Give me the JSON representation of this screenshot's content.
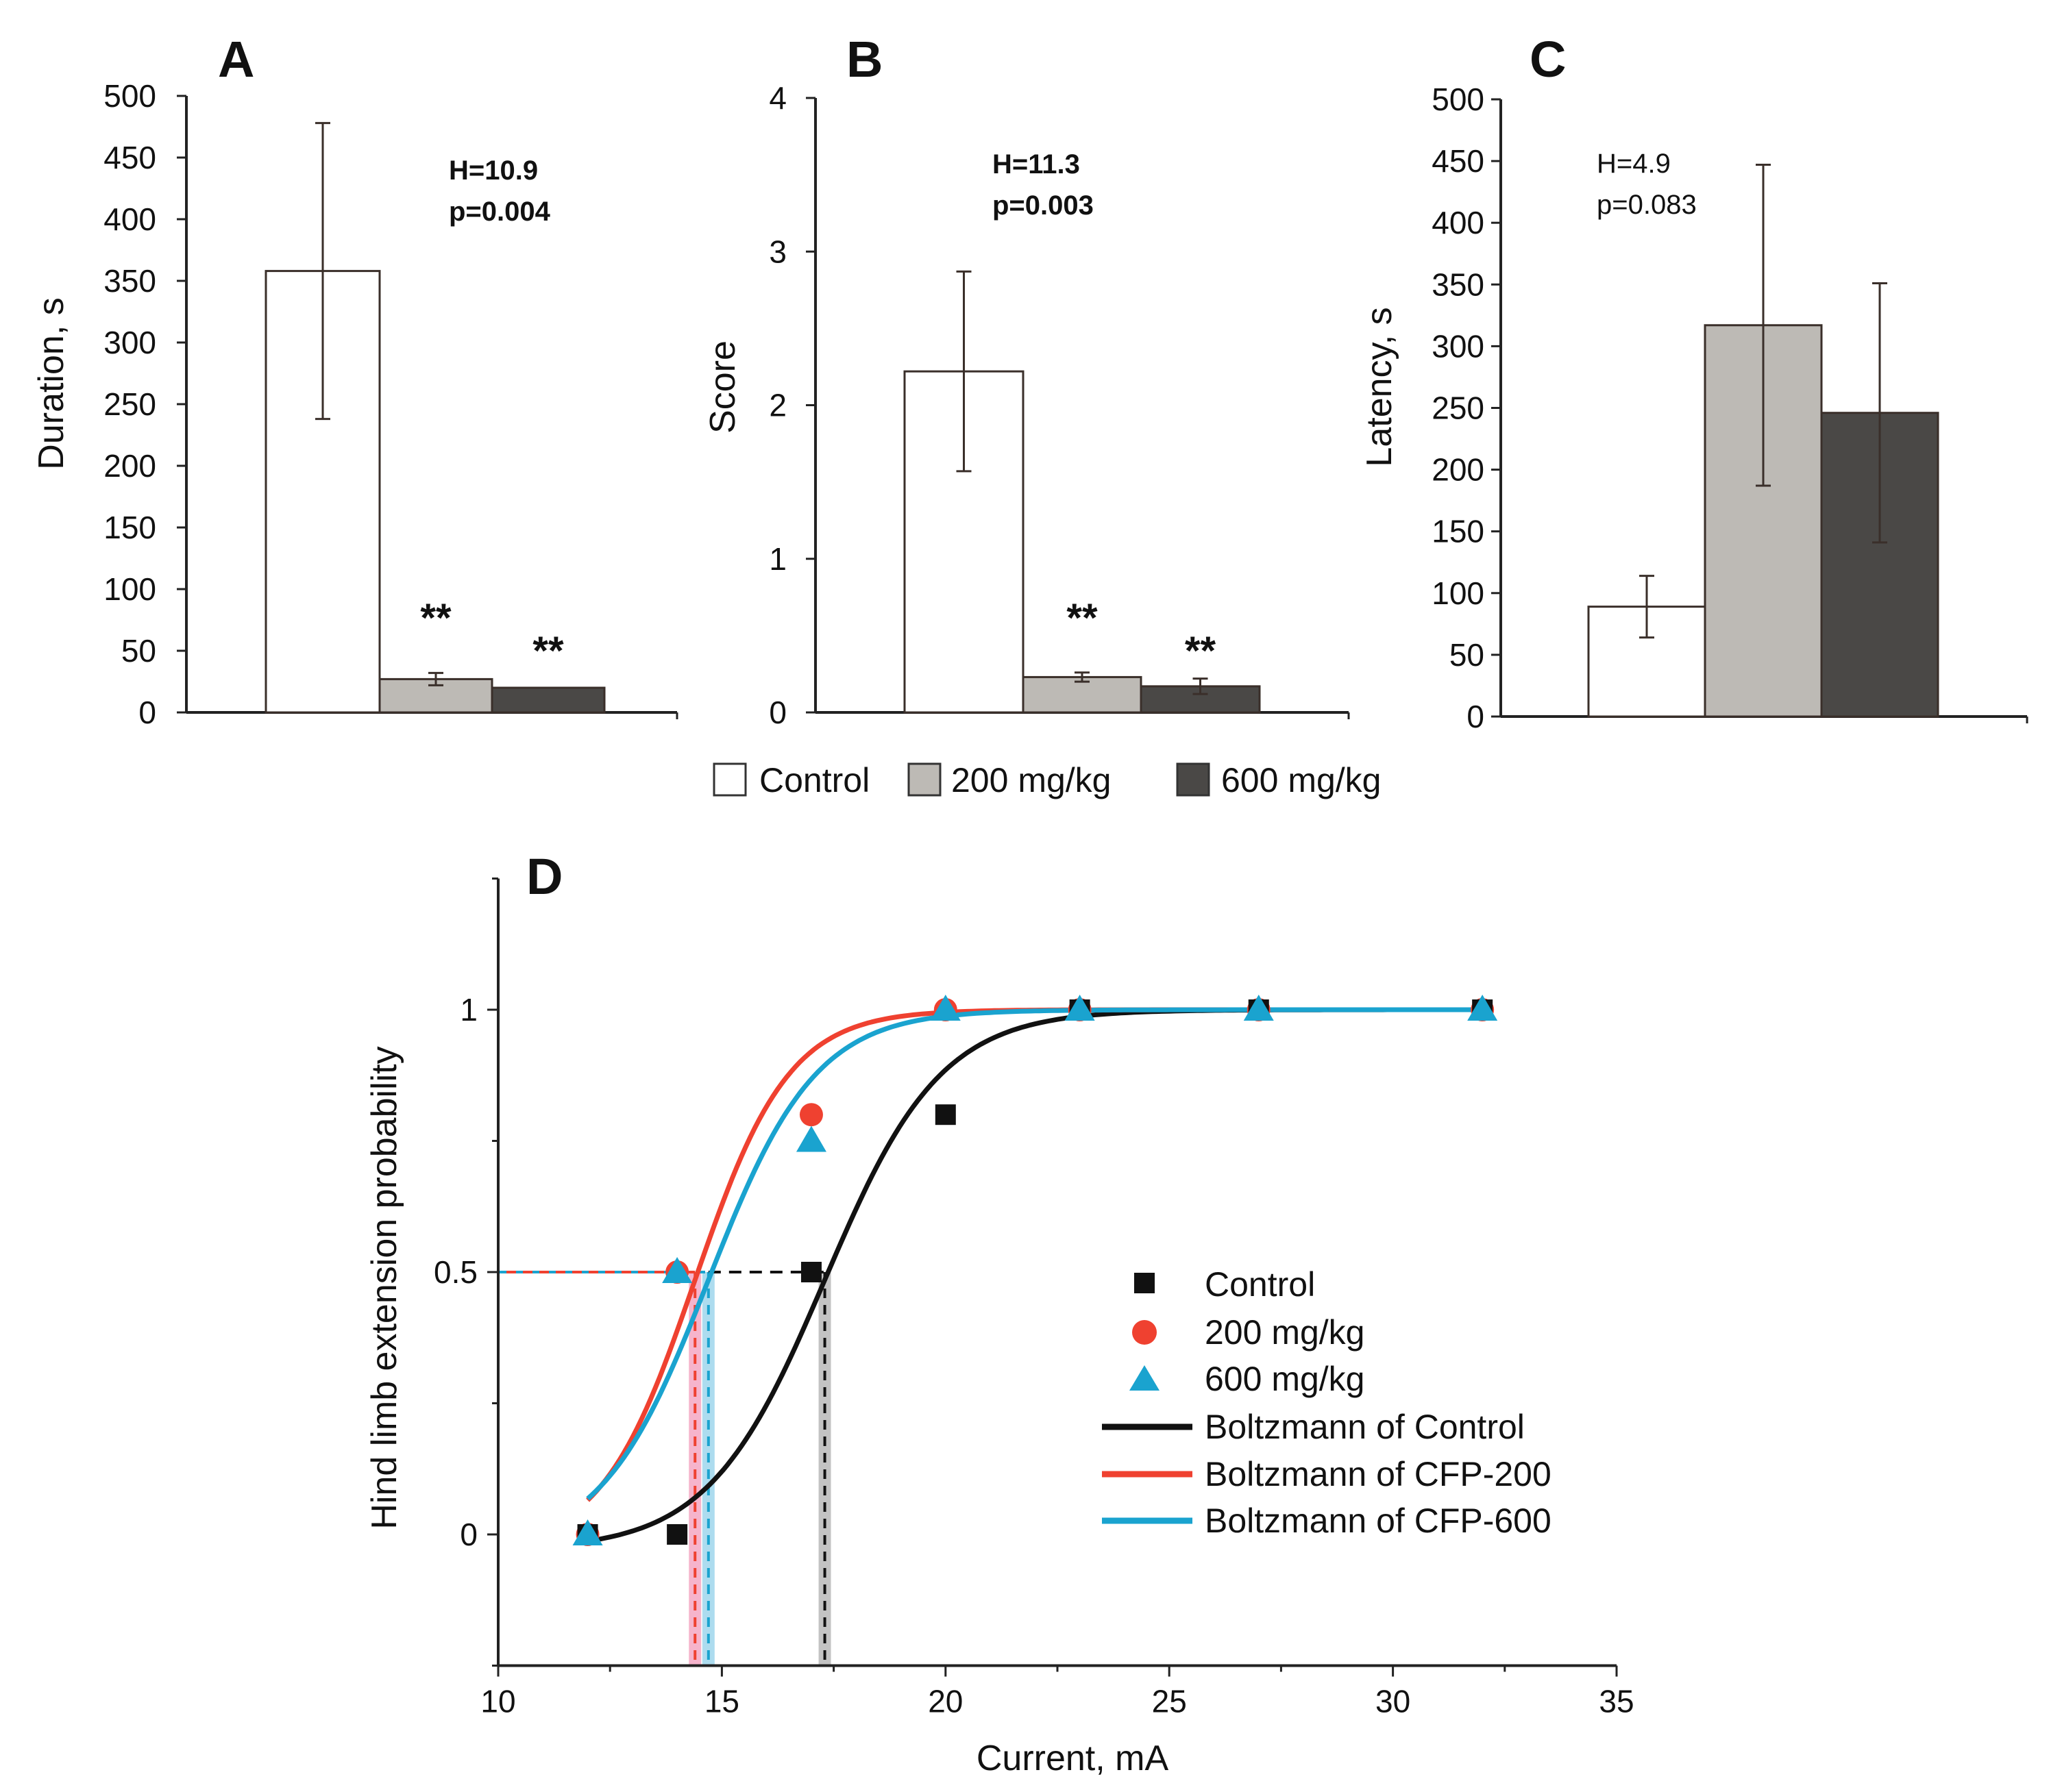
{
  "colors": {
    "control": "#ffffff",
    "dose200": "#bdbab5",
    "dose600": "#4a4846",
    "edge": "#3a2f2a",
    "boltz_control": "#111111",
    "boltz_200": "#ef4130",
    "boltz_600": "#1aa3cf",
    "marker_control": "#111111",
    "marker_200": "#ef4130",
    "marker_600": "#1aa3cf"
  },
  "legend_top": {
    "items": [
      {
        "label": "Control",
        "color_key": "control"
      },
      {
        "label": "200 mg/kg",
        "color_key": "dose200"
      },
      {
        "label": "600 mg/kg",
        "color_key": "dose600"
      }
    ]
  },
  "chart_data": [
    {
      "panel": "A",
      "type": "bar",
      "ylabel": "Duration, s",
      "ylim": [
        0,
        500
      ],
      "yticks": [
        0,
        50,
        100,
        150,
        200,
        250,
        300,
        350,
        400,
        450,
        500
      ],
      "categories": [
        "Control",
        "200 mg/kg",
        "600 mg/kg"
      ],
      "values": [
        358,
        27,
        20
      ],
      "errors": [
        120,
        5,
        0
      ],
      "significance": [
        "",
        "**",
        "**"
      ],
      "stat_lines": [
        "H=10.9",
        "p=0.004"
      ],
      "stat_bold": true
    },
    {
      "panel": "B",
      "type": "bar",
      "ylabel": "Score",
      "ylim": [
        0,
        4
      ],
      "yticks": [
        0,
        1,
        2,
        3,
        4
      ],
      "categories": [
        "Control",
        "200 mg/kg",
        "600 mg/kg"
      ],
      "values": [
        2.22,
        0.23,
        0.17
      ],
      "errors": [
        0.65,
        0.03,
        0.05
      ],
      "significance": [
        "",
        "**",
        "**"
      ],
      "stat_lines": [
        "H=11.3",
        "p=0.003"
      ],
      "stat_bold": true
    },
    {
      "panel": "C",
      "type": "bar",
      "ylabel": "Latency, s",
      "ylim": [
        0,
        500
      ],
      "yticks": [
        0,
        50,
        100,
        150,
        200,
        250,
        300,
        350,
        400,
        450,
        500
      ],
      "categories": [
        "Control",
        "200 mg/kg",
        "600 mg/kg"
      ],
      "values": [
        89,
        317,
        246
      ],
      "errors": [
        25,
        130,
        105
      ],
      "significance": [
        "",
        "",
        ""
      ],
      "stat_lines": [
        "H=4.9",
        "p=0.083"
      ],
      "stat_bold": false
    },
    {
      "panel": "D",
      "type": "scatter",
      "xlabel": "Current, mA",
      "ylabel": "Hind limb extension probability",
      "xlim": [
        10,
        35
      ],
      "ylim": [
        -0.25,
        1.25
      ],
      "xticks": [
        10,
        15,
        20,
        25,
        30,
        35
      ],
      "yticks": [
        0,
        0.5,
        1
      ],
      "ytick_labels": [
        "0",
        "0.5",
        "1"
      ],
      "series": [
        {
          "name": "Control",
          "marker": "square",
          "color_key": "marker_control",
          "x": [
            12,
            14,
            17,
            20,
            23,
            27,
            32
          ],
          "y": [
            0,
            0,
            0.5,
            0.8,
            1,
            1,
            1
          ]
        },
        {
          "name": "200 mg/kg",
          "marker": "circle",
          "color_key": "marker_200",
          "x": [
            12,
            14,
            17,
            20,
            23,
            27,
            32
          ],
          "y": [
            0,
            0.5,
            0.8,
            1,
            1,
            1,
            1
          ]
        },
        {
          "name": "600 mg/kg",
          "marker": "triangle",
          "color_key": "marker_600",
          "x": [
            12,
            14,
            17,
            20,
            23,
            27,
            32
          ],
          "y": [
            0,
            0.5,
            0.75,
            1,
            1,
            1,
            1
          ]
        }
      ],
      "fits": [
        {
          "name": "Boltzmann of Control",
          "color_key": "boltz_control",
          "A1": -0.03,
          "A2": 1.0,
          "x0": 17.3,
          "dx": 1.3,
          "x_from": 12,
          "x_to": 32.2
        },
        {
          "name": "Boltzmann of CFP-200",
          "color_key": "boltz_200",
          "A1": -0.03,
          "A2": 1.0,
          "x0": 14.4,
          "dx": 1.05,
          "x_from": 12,
          "x_to": 32.2
        },
        {
          "name": "Boltzmann of CFP-600",
          "color_key": "boltz_600",
          "A1": -0.03,
          "A2": 1.0,
          "x0": 14.7,
          "dx": 1.2,
          "x_from": 12,
          "x_to": 32.2
        }
      ],
      "ed50": [
        {
          "name": "Control",
          "x": 17.3,
          "color_key": "boltz_control",
          "band": "#b8b8b8"
        },
        {
          "name": "CFP-200",
          "x": 14.4,
          "color_key": "boltz_200",
          "band": "#f4a7c3"
        },
        {
          "name": "CFP-600",
          "x": 14.7,
          "color_key": "boltz_600",
          "band": "#9fd6ec"
        }
      ],
      "legend": [
        "Control",
        "200 mg/kg",
        "600 mg/kg",
        "Boltzmann of Control",
        "Boltzmann of CFP-200",
        "Boltzmann of CFP-600"
      ]
    }
  ]
}
